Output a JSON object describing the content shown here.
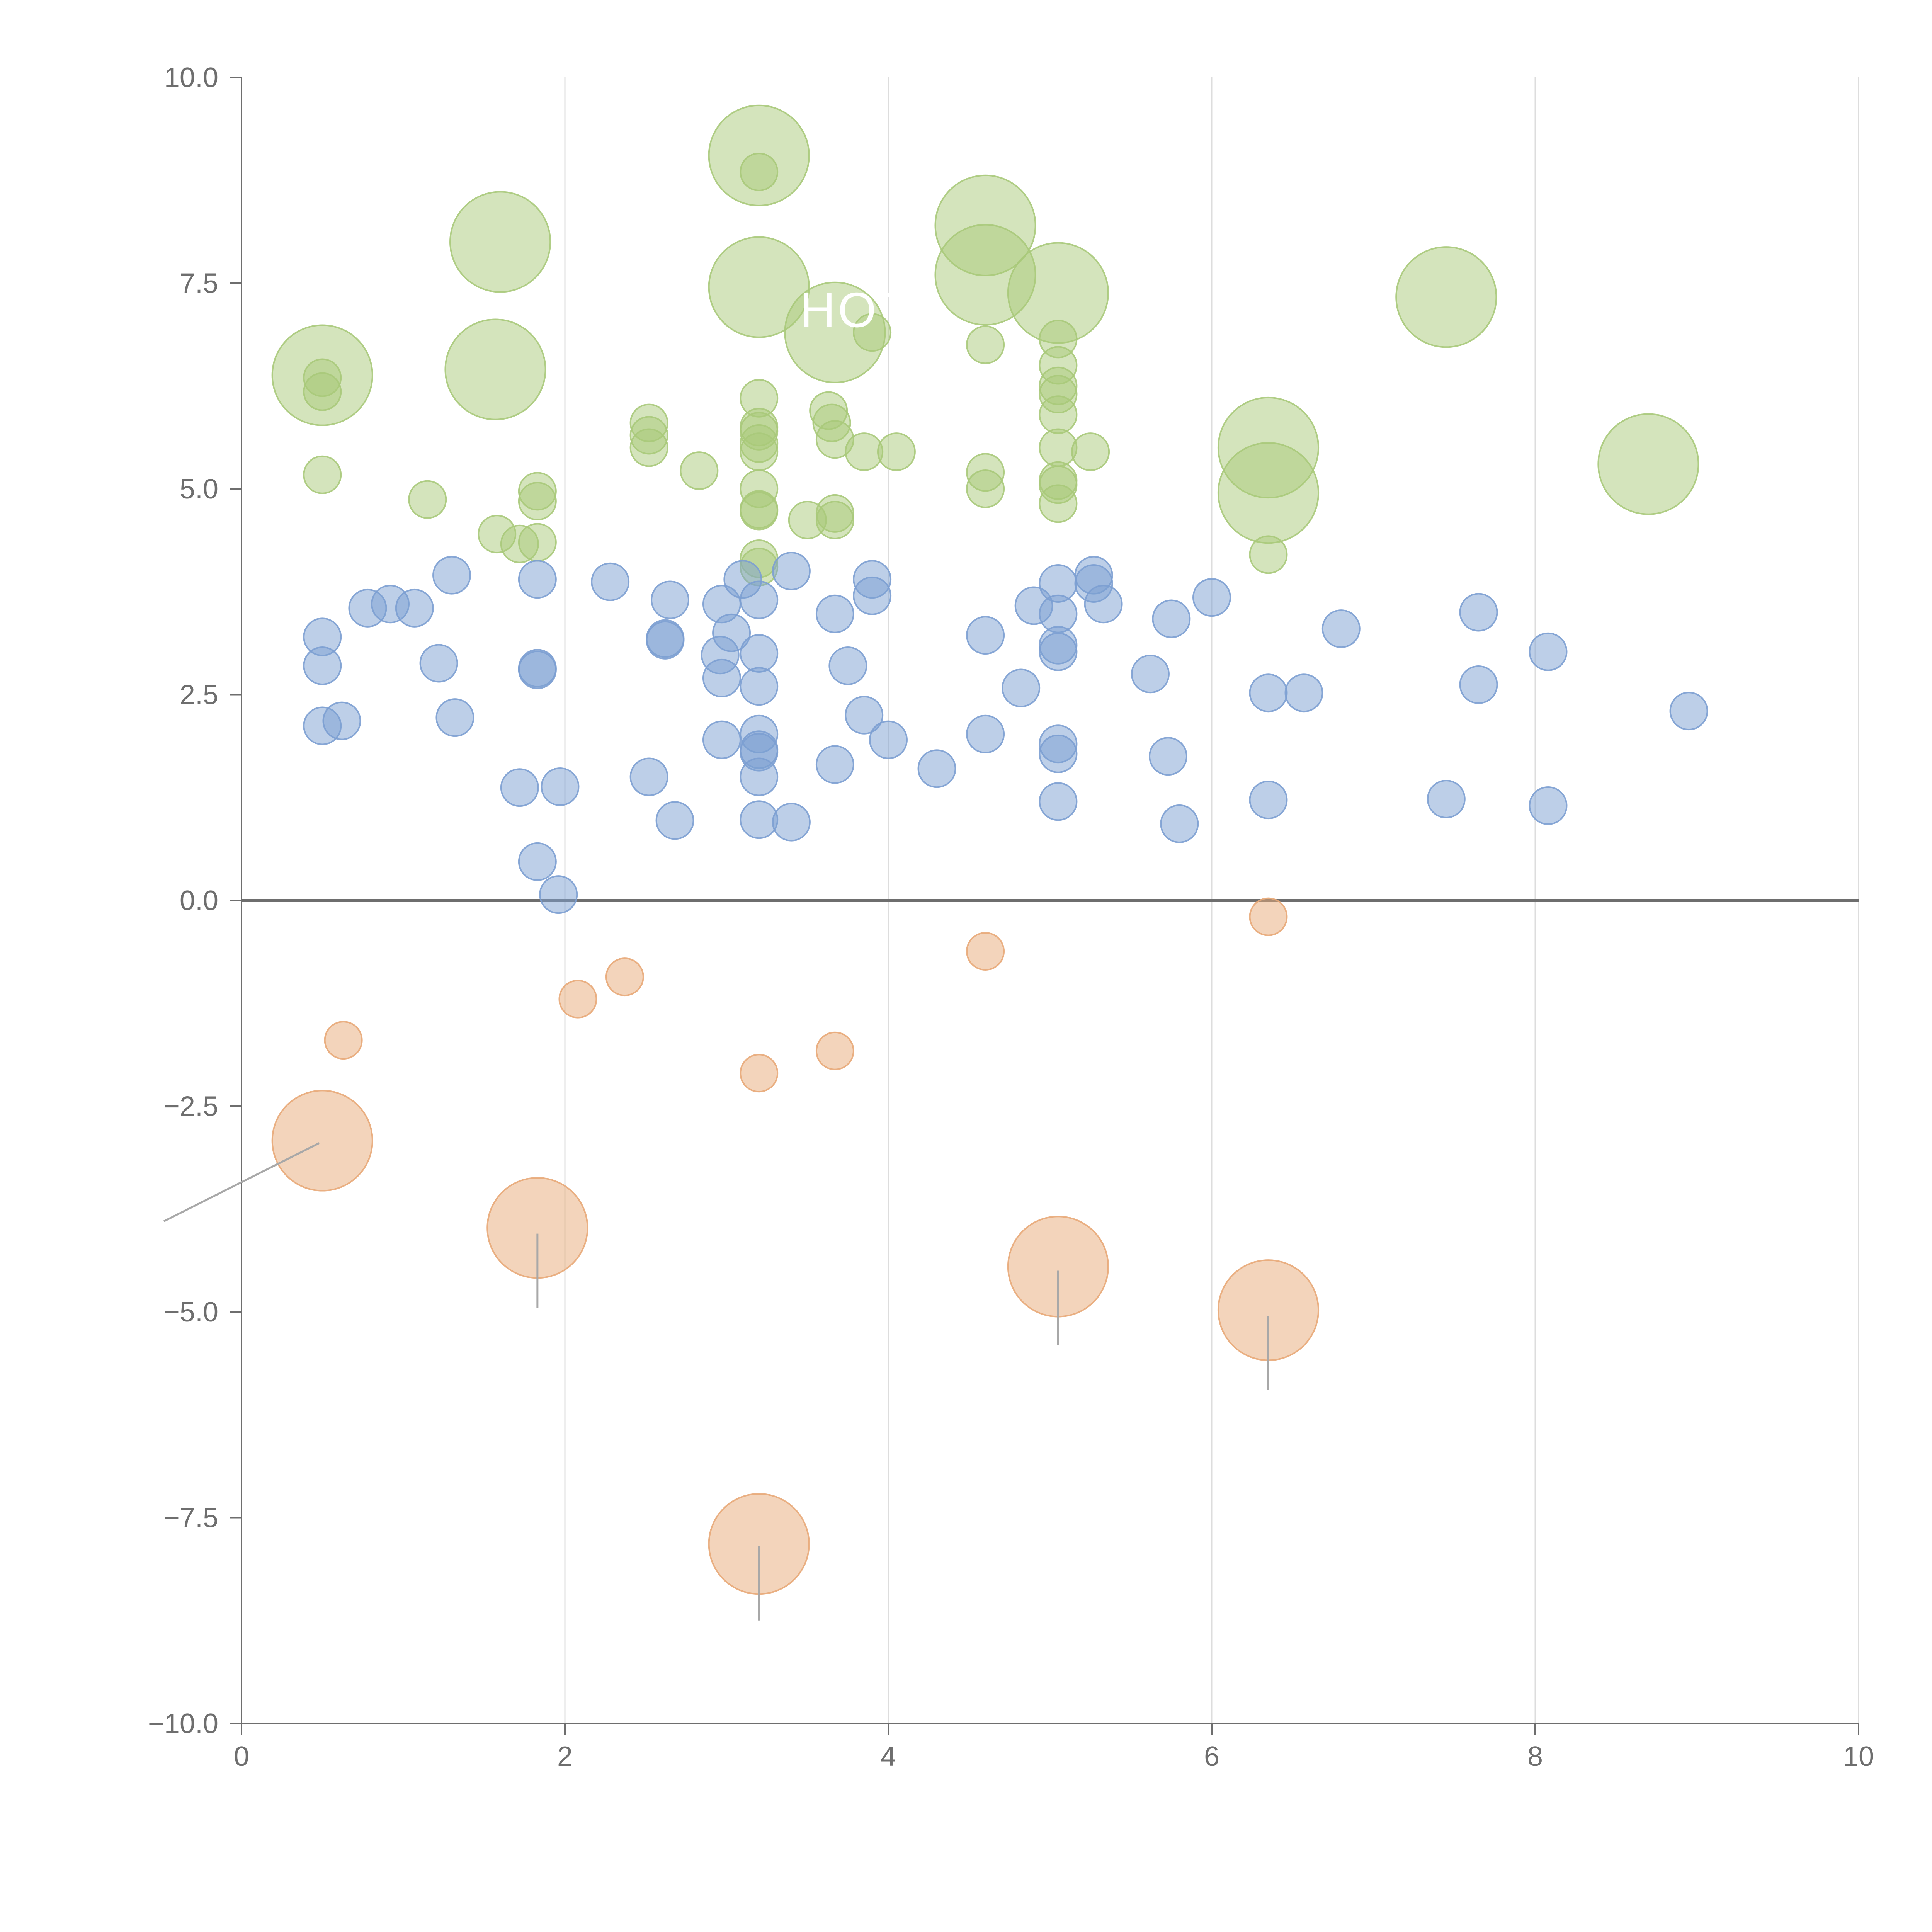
{
  "chart_data": {
    "type": "scatter",
    "title": "",
    "xlabel": "",
    "ylabel": "",
    "xlim": [
      0,
      10
    ],
    "ylim": [
      -10,
      10
    ],
    "x_ticks": [
      "0",
      "2",
      "4",
      "6",
      "8",
      "10"
    ],
    "y_ticks": [
      "10.0",
      "7.5",
      "5.0",
      "2.5",
      "0.0",
      "−2.5",
      "−5.0",
      "−7.5",
      "−10.0"
    ],
    "grid": "vertical",
    "zero_line": true,
    "colors": {
      "high": "#a9c97a",
      "mid": "#7c9fd2",
      "low": "#e8a978",
      "axis": "#6e6e6e",
      "grid": "#dddddd"
    },
    "annotations": [
      {
        "text": "HOT",
        "x": 3.5,
        "y": 7.2
      }
    ],
    "series": [
      {
        "name": "high",
        "points": [
          [
            3.2,
            9.05,
            2.7
          ],
          [
            3.2,
            8.85,
            1
          ],
          [
            1.6,
            8.0,
            2.7
          ],
          [
            4.6,
            8.2,
            2.7
          ],
          [
            4.6,
            7.6,
            2.7
          ],
          [
            3.2,
            7.45,
            2.7
          ],
          [
            5.05,
            7.38,
            2.7
          ],
          [
            7.45,
            7.33,
            2.7
          ],
          [
            3.67,
            6.9,
            2.7
          ],
          [
            3.9,
            6.9,
            1
          ],
          [
            0.5,
            6.38,
            2.7
          ],
          [
            0.5,
            6.35,
            1
          ],
          [
            0.5,
            6.18,
            1
          ],
          [
            1.57,
            6.45,
            2.7
          ],
          [
            4.6,
            6.75,
            1
          ],
          [
            5.05,
            6.82,
            1
          ],
          [
            5.05,
            6.5,
            1
          ],
          [
            5.05,
            6.25,
            1
          ],
          [
            5.05,
            6.15,
            1
          ],
          [
            5.05,
            5.9,
            1
          ],
          [
            5.05,
            5.5,
            1
          ],
          [
            5.05,
            5.1,
            1
          ],
          [
            5.05,
            5.05,
            1
          ],
          [
            5.05,
            4.82,
            1
          ],
          [
            5.25,
            5.45,
            1
          ],
          [
            3.2,
            6.1,
            1
          ],
          [
            3.2,
            5.75,
            1
          ],
          [
            3.2,
            5.7,
            1
          ],
          [
            3.2,
            5.55,
            1
          ],
          [
            3.2,
            5.45,
            1
          ],
          [
            3.2,
            5.0,
            1
          ],
          [
            3.2,
            4.75,
            1
          ],
          [
            3.2,
            4.73,
            1
          ],
          [
            3.2,
            4.15,
            1
          ],
          [
            3.2,
            4.05,
            1
          ],
          [
            3.63,
            5.95,
            1
          ],
          [
            3.65,
            5.8,
            1
          ],
          [
            3.67,
            5.6,
            1
          ],
          [
            3.85,
            5.45,
            1
          ],
          [
            4.05,
            5.45,
            1
          ],
          [
            3.67,
            4.7,
            1
          ],
          [
            3.67,
            4.62,
            1
          ],
          [
            3.5,
            4.62,
            1
          ],
          [
            2.52,
            5.8,
            1
          ],
          [
            2.52,
            5.65,
            1
          ],
          [
            2.52,
            5.5,
            1
          ],
          [
            2.83,
            5.22,
            1
          ],
          [
            0.5,
            5.17,
            1
          ],
          [
            1.15,
            4.87,
            1
          ],
          [
            1.83,
            4.97,
            1
          ],
          [
            1.83,
            4.85,
            1
          ],
          [
            1.58,
            4.45,
            1
          ],
          [
            1.72,
            4.33,
            1
          ],
          [
            1.83,
            4.35,
            1
          ],
          [
            4.6,
            5.2,
            1
          ],
          [
            4.6,
            5.0,
            1
          ],
          [
            6.35,
            5.5,
            2.7
          ],
          [
            6.35,
            4.95,
            2.7
          ],
          [
            6.35,
            4.2,
            1
          ],
          [
            8.7,
            5.3,
            2.7
          ]
        ]
      },
      {
        "name": "mid",
        "points": [
          [
            0.5,
            3.2,
            1
          ],
          [
            0.5,
            2.85,
            1
          ],
          [
            0.5,
            2.12,
            1
          ],
          [
            0.62,
            2.18,
            1
          ],
          [
            0.78,
            3.55,
            1
          ],
          [
            0.92,
            3.6,
            1
          ],
          [
            1.07,
            3.55,
            1
          ],
          [
            1.3,
            3.95,
            1
          ],
          [
            1.22,
            2.88,
            1
          ],
          [
            1.32,
            2.22,
            1
          ],
          [
            1.72,
            1.37,
            1
          ],
          [
            1.83,
            3.9,
            1
          ],
          [
            1.83,
            2.82,
            1
          ],
          [
            1.83,
            2.8,
            1
          ],
          [
            1.97,
            1.38,
            1
          ],
          [
            1.83,
            0.47,
            1
          ],
          [
            1.96,
            0.07,
            1
          ],
          [
            2.28,
            3.87,
            1
          ],
          [
            2.52,
            1.5,
            1
          ],
          [
            2.62,
            3.18,
            1
          ],
          [
            2.62,
            3.16,
            1
          ],
          [
            2.65,
            3.65,
            1
          ],
          [
            2.68,
            0.97,
            1
          ],
          [
            2.97,
            3.6,
            1
          ],
          [
            2.96,
            2.98,
            1
          ],
          [
            2.97,
            2.7,
            1
          ],
          [
            2.97,
            1.95,
            1
          ],
          [
            3.03,
            3.25,
            1
          ],
          [
            3.1,
            3.9,
            1
          ],
          [
            3.2,
            3.65,
            1
          ],
          [
            3.2,
            3.0,
            1
          ],
          [
            3.2,
            2.6,
            1
          ],
          [
            3.2,
            2.02,
            1
          ],
          [
            3.2,
            1.83,
            1
          ],
          [
            3.2,
            1.8,
            1
          ],
          [
            3.2,
            1.5,
            1
          ],
          [
            3.2,
            0.98,
            1
          ],
          [
            3.4,
            4.0,
            1
          ],
          [
            3.4,
            0.95,
            1
          ],
          [
            3.67,
            3.48,
            1
          ],
          [
            3.67,
            1.65,
            1
          ],
          [
            3.75,
            2.85,
            1
          ],
          [
            3.85,
            2.25,
            1
          ],
          [
            3.9,
            3.9,
            1
          ],
          [
            3.9,
            3.7,
            1
          ],
          [
            4.0,
            1.95,
            1
          ],
          [
            4.3,
            1.6,
            1
          ],
          [
            4.6,
            3.22,
            1
          ],
          [
            4.6,
            2.02,
            1
          ],
          [
            4.82,
            2.58,
            1
          ],
          [
            4.9,
            3.58,
            1
          ],
          [
            5.05,
            3.85,
            1
          ],
          [
            5.05,
            3.48,
            1
          ],
          [
            5.05,
            3.1,
            1
          ],
          [
            5.05,
            3.02,
            1
          ],
          [
            5.05,
            1.9,
            1
          ],
          [
            5.05,
            1.78,
            1
          ],
          [
            5.05,
            1.2,
            1
          ],
          [
            5.27,
            3.95,
            1
          ],
          [
            5.27,
            3.85,
            1
          ],
          [
            5.33,
            3.6,
            1
          ],
          [
            5.62,
            2.75,
            1
          ],
          [
            5.75,
            3.42,
            1
          ],
          [
            5.73,
            1.75,
            1
          ],
          [
            5.8,
            0.93,
            1
          ],
          [
            6.0,
            3.68,
            1
          ],
          [
            6.35,
            2.52,
            1
          ],
          [
            6.35,
            1.22,
            1
          ],
          [
            6.57,
            2.52,
            1
          ],
          [
            6.8,
            3.3,
            1
          ],
          [
            7.45,
            1.23,
            1
          ],
          [
            7.65,
            3.5,
            1
          ],
          [
            7.65,
            2.62,
            1
          ],
          [
            8.08,
            3.02,
            1
          ],
          [
            8.08,
            1.15,
            1
          ],
          [
            8.95,
            2.3,
            1
          ]
        ]
      },
      {
        "name": "low",
        "points": [
          [
            6.35,
            -0.2,
            1
          ],
          [
            4.6,
            -0.62,
            1
          ],
          [
            2.37,
            -0.93,
            1
          ],
          [
            2.08,
            -1.2,
            1
          ],
          [
            0.63,
            -1.7,
            1
          ],
          [
            3.67,
            -1.83,
            1
          ],
          [
            3.2,
            -2.1,
            1
          ],
          [
            0.5,
            -2.92,
            2.7
          ],
          [
            1.83,
            -3.98,
            2.7
          ],
          [
            5.05,
            -4.45,
            2.7
          ],
          [
            6.35,
            -4.98,
            2.7
          ],
          [
            3.2,
            -7.82,
            2.7
          ]
        ]
      }
    ],
    "leader_lines": [
      {
        "x1": 0.48,
        "y1": -2.95,
        "x2": -0.48,
        "y2": -3.9
      },
      {
        "x1": 1.83,
        "y1": -4.05,
        "x2": 1.83,
        "y2": -4.95
      },
      {
        "x1": 5.05,
        "y1": -4.5,
        "x2": 5.05,
        "y2": -5.4
      },
      {
        "x1": 6.35,
        "y1": -5.05,
        "x2": 6.35,
        "y2": -5.95
      },
      {
        "x1": 3.2,
        "y1": -7.85,
        "x2": 3.2,
        "y2": -8.75
      }
    ]
  }
}
